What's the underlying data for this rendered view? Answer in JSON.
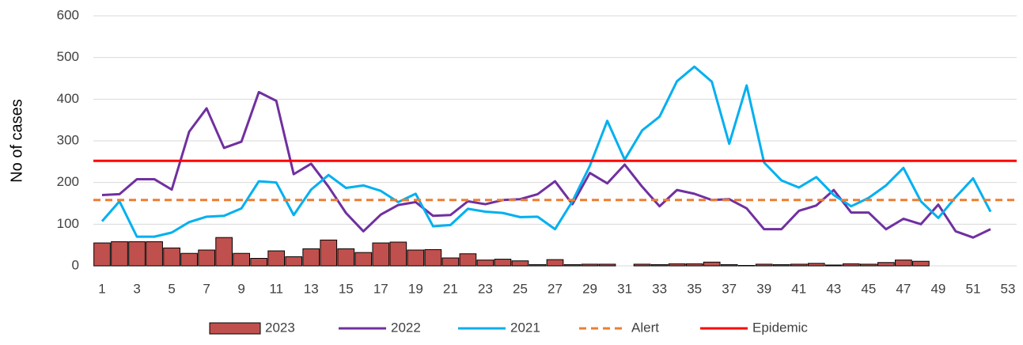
{
  "chart_data": {
    "type": "combo",
    "y_label": "No of cases",
    "categories": [
      1,
      null,
      3,
      null,
      5,
      null,
      7,
      null,
      9,
      null,
      11,
      null,
      13,
      null,
      15,
      null,
      17,
      null,
      19,
      null,
      21,
      null,
      23,
      null,
      25,
      null,
      27,
      null,
      29,
      null,
      31,
      null,
      33,
      null,
      35,
      null,
      37,
      null,
      39,
      null,
      41,
      null,
      43,
      null,
      45,
      null,
      47,
      null,
      49,
      null,
      51,
      null,
      53
    ],
    "ylim": [
      0,
      600
    ],
    "yticks": [
      0,
      100,
      200,
      300,
      400,
      500,
      600
    ],
    "grid": true,
    "series": [
      {
        "name": "2023",
        "kind": "bar",
        "color": "#c0504d",
        "values": [
          55,
          58,
          58,
          58,
          43,
          30,
          38,
          68,
          30,
          18,
          36,
          22,
          41,
          62,
          41,
          32,
          55,
          57,
          38,
          39,
          19,
          29,
          14,
          16,
          12,
          3,
          15,
          3,
          4,
          4,
          0,
          4,
          3,
          5,
          5,
          9,
          3,
          1,
          4,
          3,
          4,
          6,
          2,
          5,
          4,
          8,
          14,
          11,
          null,
          null,
          null,
          null,
          null
        ]
      },
      {
        "name": "2022",
        "kind": "line",
        "color": "#7030a0",
        "values": [
          170,
          172,
          208,
          208,
          183,
          322,
          378,
          283,
          298,
          417,
          396,
          220,
          245,
          190,
          127,
          83,
          123,
          146,
          153,
          120,
          122,
          155,
          148,
          158,
          160,
          172,
          203,
          148,
          223,
          198,
          243,
          190,
          143,
          182,
          173,
          158,
          160,
          138,
          88,
          88,
          132,
          145,
          182,
          128,
          128,
          88,
          113,
          100,
          147,
          83,
          68,
          88,
          null
        ]
      },
      {
        "name": "2021",
        "kind": "line",
        "color": "#00b0f0",
        "values": [
          107,
          155,
          70,
          70,
          80,
          105,
          118,
          120,
          138,
          203,
          200,
          122,
          183,
          218,
          187,
          193,
          180,
          153,
          173,
          95,
          98,
          137,
          130,
          127,
          117,
          118,
          88,
          155,
          240,
          348,
          255,
          325,
          358,
          443,
          478,
          442,
          293,
          433,
          248,
          205,
          188,
          213,
          170,
          143,
          163,
          193,
          235,
          155,
          115,
          165,
          210,
          130,
          null
        ]
      },
      {
        "name": "Alert",
        "kind": "threshold",
        "dashed": true,
        "color": "#ed7d31",
        "value": 158
      },
      {
        "name": "Epidemic",
        "kind": "threshold",
        "color": "#ff0000",
        "value": 252
      }
    ]
  }
}
